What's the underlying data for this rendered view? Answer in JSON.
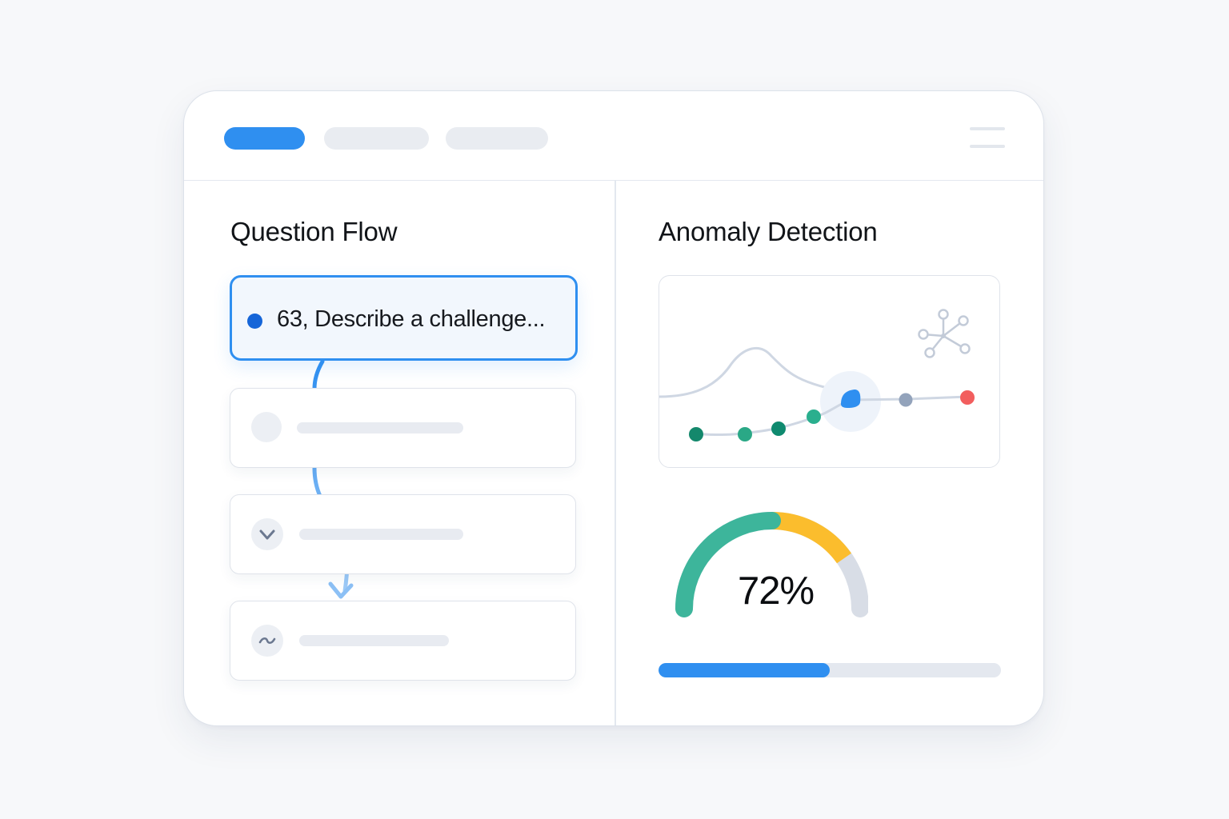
{
  "header": {
    "tabs": [
      {
        "name": "tab-1",
        "active": true
      },
      {
        "name": "tab-2",
        "active": false
      },
      {
        "name": "tab-3",
        "active": false
      }
    ],
    "menu_icon": "hamburger-menu-icon"
  },
  "question_flow": {
    "title": "Question Flow",
    "items": [
      {
        "text": "63, Describe a challenge...",
        "status": "active",
        "icon": "dot-icon"
      },
      {
        "text": "",
        "status": "pending",
        "icon": "empty-circle-icon"
      },
      {
        "text": "",
        "status": "done",
        "icon": "check-icon"
      },
      {
        "text": "",
        "status": "pending",
        "icon": "wave-icon"
      }
    ]
  },
  "anomaly_detection": {
    "title": "Anomaly Detection",
    "network_icon": "network-graph-icon",
    "gauge": {
      "value_text": "72%",
      "value": 72
    },
    "progress": {
      "value": 0.5
    },
    "colors": {
      "accent": "#2f8ff0",
      "normal_point": "#1f9a78",
      "anomaly_point": "#f25e5e",
      "neutral_point": "#93a3bb",
      "gauge_green": "#3db59b",
      "gauge_yellow": "#fbbd2d",
      "gauge_track": "#d8dde6"
    }
  }
}
